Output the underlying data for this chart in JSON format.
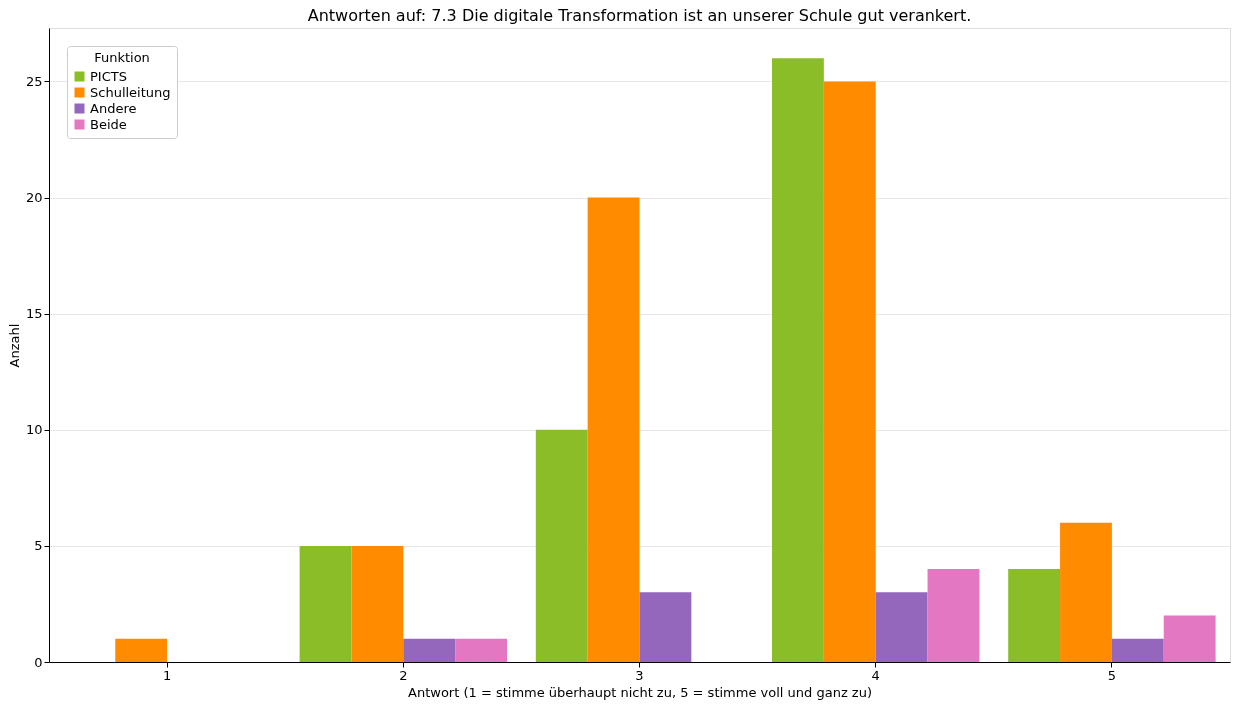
{
  "chart_data": {
    "type": "bar",
    "title": "Antworten auf: 7.3 Die digitale Transformation ist an unserer Schule gut verankert.",
    "xlabel": "Antwort (1 = stimme überhaupt nicht zu, 5 = stimme voll und ganz zu)",
    "ylabel": "Anzahl",
    "legend_title": "Funktion",
    "categories": [
      "1",
      "2",
      "3",
      "4",
      "5"
    ],
    "series": [
      {
        "name": "PICTS",
        "color": "#8bbd28",
        "values": [
          0,
          5,
          10,
          26,
          4
        ]
      },
      {
        "name": "Schulleitung",
        "color": "#ff8c00",
        "values": [
          1,
          5,
          20,
          25,
          6
        ]
      },
      {
        "name": "Andere",
        "color": "#9467bd",
        "values": [
          0,
          1,
          3,
          3,
          1
        ]
      },
      {
        "name": "Beide",
        "color": "#e377c2",
        "values": [
          0,
          1,
          0,
          4,
          2
        ]
      }
    ],
    "ylim": [
      0,
      27.3
    ],
    "yticks": [
      0,
      5,
      10,
      15,
      20,
      25
    ],
    "grid": "y",
    "legend": "top left"
  }
}
